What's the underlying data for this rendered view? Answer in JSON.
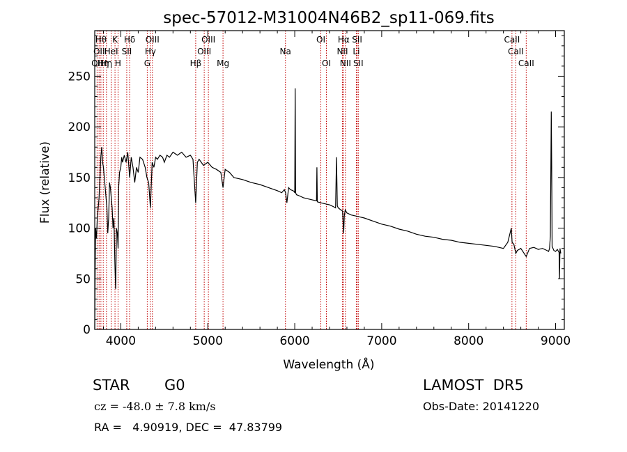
{
  "chart_data": {
    "type": "line",
    "title": "spec-57012-M31004N46B2_sp11-069.fits",
    "xlabel": "Wavelength (Å)",
    "ylabel": "Flux (relative)",
    "xlim": [
      3700,
      9100
    ],
    "ylim": [
      0,
      295
    ],
    "x_ticks": [
      4000,
      5000,
      6000,
      7000,
      8000,
      9000
    ],
    "y_ticks": [
      0,
      50,
      100,
      150,
      200,
      250
    ],
    "grid": false,
    "series": [
      {
        "x": [
          3700,
          3705,
          3710,
          3720,
          3730,
          3740,
          3750,
          3760,
          3770,
          3780,
          3790,
          3800,
          3810,
          3820,
          3830,
          3840,
          3850,
          3860,
          3870,
          3880,
          3890,
          3900,
          3910,
          3920,
          3933,
          3940,
          3950,
          3960,
          3968,
          3975,
          3985,
          4000,
          4010,
          4020,
          4040,
          4060,
          4080,
          4101,
          4120,
          4140,
          4160,
          4180,
          4200,
          4220,
          4250,
          4280,
          4300,
          4320,
          4340,
          4360,
          4380,
          4400,
          4420,
          4450,
          4480,
          4500,
          4530,
          4560,
          4600,
          4650,
          4700,
          4750,
          4800,
          4830,
          4861,
          4880,
          4900,
          4950,
          5000,
          5050,
          5100,
          5150,
          5175,
          5200,
          5250,
          5300,
          5400,
          5500,
          5600,
          5700,
          5800,
          5850,
          5880,
          5895,
          5910,
          5930,
          5950,
          5980,
          5995,
          6000,
          6005,
          6010,
          6020,
          6050,
          6100,
          6150,
          6200,
          6250,
          6255,
          6260,
          6300,
          6350,
          6400,
          6450,
          6470,
          6480,
          6490,
          6500,
          6530,
          6550,
          6563,
          6570,
          6580,
          6600,
          6650,
          6700,
          6750,
          6800,
          6900,
          7000,
          7100,
          7200,
          7300,
          7400,
          7500,
          7600,
          7700,
          7800,
          7900,
          8000,
          8100,
          8200,
          8300,
          8400,
          8450,
          8490,
          8500,
          8520,
          8542,
          8560,
          8600,
          8662,
          8700,
          8750,
          8800,
          8850,
          8900,
          8920,
          8930,
          8940,
          8950,
          8955,
          8960,
          8970,
          8980,
          9000,
          9020,
          9040,
          9045,
          9050,
          9060
        ],
        "y": [
          0,
          60,
          100,
          90,
          110,
          120,
          130,
          150,
          170,
          180,
          165,
          160,
          150,
          140,
          130,
          120,
          95,
          110,
          145,
          140,
          130,
          120,
          100,
          110,
          60,
          40,
          100,
          95,
          80,
          140,
          155,
          160,
          170,
          165,
          172,
          165,
          175,
          150,
          170,
          160,
          145,
          160,
          155,
          170,
          168,
          160,
          150,
          145,
          120,
          165,
          160,
          170,
          168,
          172,
          170,
          165,
          172,
          170,
          175,
          172,
          175,
          170,
          172,
          168,
          125,
          165,
          168,
          162,
          165,
          160,
          158,
          155,
          140,
          158,
          155,
          150,
          148,
          145,
          143,
          140,
          137,
          135,
          138,
          135,
          125,
          140,
          138,
          137,
          136,
          135,
          238,
          135,
          133,
          132,
          130,
          129,
          128,
          127,
          160,
          126,
          125,
          124,
          123,
          121,
          120,
          170,
          122,
          120,
          118,
          117,
          95,
          112,
          118,
          115,
          113,
          112,
          111,
          110,
          107,
          104,
          102,
          99,
          97,
          94,
          92,
          91,
          89,
          88,
          86,
          85,
          84,
          83,
          82,
          80,
          86,
          100,
          86,
          84,
          75,
          78,
          80,
          72,
          80,
          81,
          79,
          80,
          78,
          77,
          80,
          92,
          215,
          160,
          82,
          80,
          78,
          77,
          79,
          76,
          50,
          80,
          75
        ]
      }
    ],
    "lines": [
      {
        "wl": 3727,
        "label": "OII",
        "row": 3
      },
      {
        "wl": 3750,
        "label": "OII",
        "row": 2
      },
      {
        "wl": 3771,
        "label": "Hθ",
        "row": 1
      },
      {
        "wl": 3798,
        "label": "Hη",
        "row": 3
      },
      {
        "wl": 3835,
        "label": "Hη",
        "row": 3
      },
      {
        "wl": 3889,
        "label": "HeI",
        "row": 2
      },
      {
        "wl": 3933,
        "label": "K",
        "row": 1
      },
      {
        "wl": 3968,
        "label": "H",
        "row": 3
      },
      {
        "wl": 4068,
        "label": "SII",
        "row": 2
      },
      {
        "wl": 4101,
        "label": "Hδ",
        "row": 1
      },
      {
        "wl": 4304,
        "label": "G",
        "row": 3
      },
      {
        "wl": 4340,
        "label": "Hγ",
        "row": 2
      },
      {
        "wl": 4363,
        "label": "OIII",
        "row": 1
      },
      {
        "wl": 4861,
        "label": "Hβ",
        "row": 3
      },
      {
        "wl": 4959,
        "label": "OIII",
        "row": 2
      },
      {
        "wl": 5007,
        "label": "OIII",
        "row": 1
      },
      {
        "wl": 5175,
        "label": "Mg",
        "row": 3
      },
      {
        "wl": 5893,
        "label": "Na",
        "row": 2
      },
      {
        "wl": 6300,
        "label": "OI",
        "row": 1
      },
      {
        "wl": 6364,
        "label": "OI",
        "row": 3
      },
      {
        "wl": 6548,
        "label": "NII",
        "row": 2
      },
      {
        "wl": 6563,
        "label": "Hα",
        "row": 1
      },
      {
        "wl": 6583,
        "label": "NII",
        "row": 3
      },
      {
        "wl": 6708,
        "label": "Li",
        "row": 2
      },
      {
        "wl": 6717,
        "label": "SII",
        "row": 1
      },
      {
        "wl": 6731,
        "label": "SII",
        "row": 3
      },
      {
        "wl": 8498,
        "label": "CaII",
        "row": 1
      },
      {
        "wl": 8542,
        "label": "CaII",
        "row": 2
      },
      {
        "wl": 8662,
        "label": "CaII",
        "row": 3
      }
    ],
    "line_color": "#c00000"
  },
  "info": {
    "class": "STAR",
    "subclass": "G0",
    "survey": "LAMOST  DR5",
    "cz": "cz = -48.0 ± 7.8 km/s",
    "obs_date": "Obs-Date: 20141220",
    "coords": "RA =   4.90919, DEC =  47.83799"
  }
}
